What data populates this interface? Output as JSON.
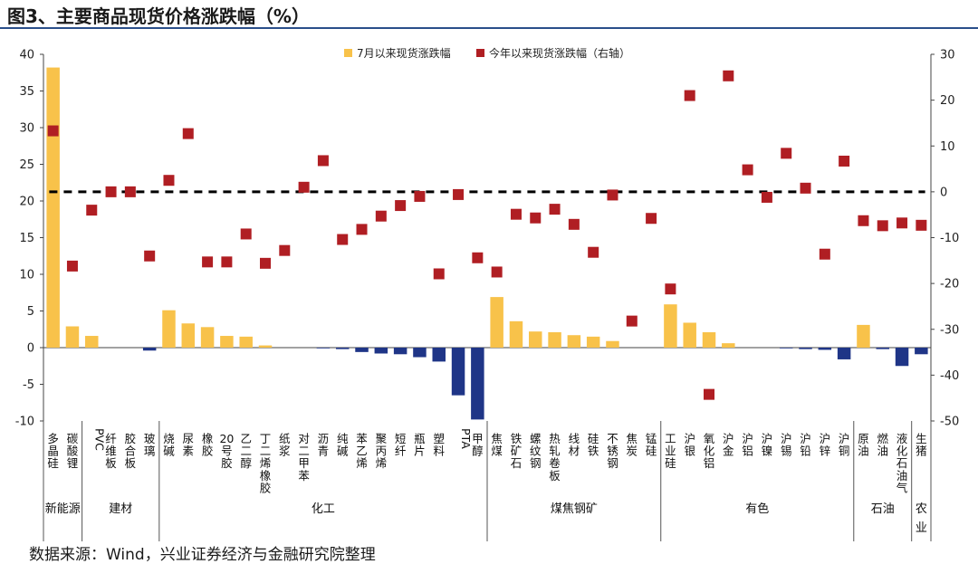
{
  "title": "图3、主要商品现货价格涨跌幅（%）",
  "source": "数据来源：Wind，兴业证券经济与金融研究院整理",
  "colors": {
    "pos_bar": "#F8C24A",
    "neg_bar": "#1F3587",
    "marker": "#B01E23",
    "title_rule": "#2a4f8a"
  },
  "chart_data": {
    "type": "bar",
    "title": "主要商品现货价格涨跌幅（%）",
    "categories": [
      "多晶硅",
      "碳酸锂",
      "PVC",
      "纤维板",
      "胶合板",
      "玻璃",
      "烧碱",
      "尿素",
      "橡胶",
      "20号胶",
      "乙二醇",
      "丁二烯橡胶",
      "纸浆",
      "对二甲苯",
      "沥青",
      "纯碱",
      "苯乙烯",
      "聚丙烯",
      "短纤",
      "瓶片",
      "塑料",
      "PTA",
      "甲醇",
      "焦煤",
      "铁矿石",
      "螺纹钢",
      "热轧卷板",
      "线材",
      "硅铁",
      "不锈钢",
      "焦炭",
      "锰硅",
      "工业硅",
      "沪银",
      "氧化铝",
      "沪金",
      "沪铝",
      "沪镍",
      "沪锡",
      "沪铅",
      "沪锌",
      "沪铜",
      "原油",
      "燃油",
      "液化石油气",
      "生猪"
    ],
    "groups": [
      {
        "name": "新能源",
        "count": 2
      },
      {
        "name": "建材",
        "count": 4
      },
      {
        "name": "化工",
        "count": 17
      },
      {
        "name": "煤焦钢矿",
        "count": 9
      },
      {
        "name": "有色",
        "count": 10
      },
      {
        "name": "石油",
        "count": 3
      },
      {
        "name": "农业",
        "count": 1
      }
    ],
    "series": [
      {
        "name": "7月以来现货涨跌幅",
        "axis": "left",
        "type": "bar",
        "values": [
          38.2,
          2.9,
          1.6,
          0,
          0,
          -0.4,
          5.1,
          3.3,
          2.8,
          1.6,
          1.5,
          0.3,
          0,
          0,
          -0.1,
          -0.2,
          -0.6,
          -0.8,
          -0.9,
          -1.3,
          -1.9,
          -6.5,
          -9.8,
          6.9,
          3.6,
          2.2,
          2.1,
          1.7,
          1.5,
          0.9,
          0,
          0,
          5.9,
          3.4,
          2.1,
          0.6,
          0,
          0,
          -0.1,
          -0.2,
          -0.3,
          -1.6,
          3.1,
          -0.2,
          -2.5,
          -0.9
        ]
      },
      {
        "name": "今年以来现货涨跌幅（右轴）",
        "axis": "right",
        "type": "scatter",
        "values": [
          13.3,
          -16.2,
          -4.0,
          0.0,
          0.0,
          -14.0,
          2.5,
          12.7,
          -15.3,
          -15.3,
          -9.2,
          -15.6,
          -12.8,
          1.0,
          6.8,
          -10.4,
          -8.2,
          -5.3,
          -3.0,
          -1.0,
          -17.9,
          -0.6,
          -14.4,
          -17.5,
          -4.9,
          -5.7,
          -3.8,
          -7.1,
          -13.2,
          -0.7,
          -28.2,
          -5.8,
          -21.2,
          21.0,
          -44.2,
          25.3,
          4.8,
          -1.2,
          8.4,
          0.8,
          -13.6,
          6.7,
          -6.3,
          -7.4,
          -6.8,
          -7.3
        ]
      }
    ],
    "reference_line": {
      "axis": "right",
      "value": 0,
      "style": "dashed"
    },
    "ylim_left": [
      -10,
      40
    ],
    "ylim_right": [
      -50,
      30
    ],
    "yticks_left": [
      "40",
      "35",
      "30",
      "25",
      "20",
      "15",
      "10",
      "5",
      "0",
      "-5",
      "-10"
    ],
    "yticks_right": [
      "30",
      "20",
      "10",
      "0",
      "-10",
      "-20",
      "-30",
      "-40",
      "-50"
    ],
    "legend_position": "top-center"
  }
}
